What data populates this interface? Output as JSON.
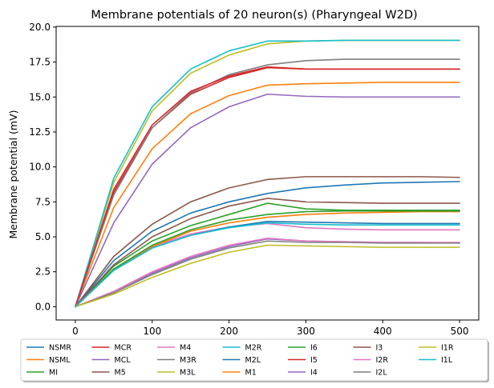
{
  "chart_data": {
    "type": "line",
    "title": "Membrane potentials of 20 neuron(s) (Pharyngeal W2D)",
    "xlabel": "",
    "ylabel": "Membrane potential (mV)",
    "xlim": [
      -25,
      525
    ],
    "ylim": [
      -0.95,
      20.05
    ],
    "xticks": [
      0,
      100,
      200,
      300,
      400,
      500
    ],
    "yticks": [
      0.0,
      2.5,
      5.0,
      7.5,
      10.0,
      12.5,
      15.0,
      17.5,
      20.0
    ],
    "xtick_labels": [
      "0",
      "100",
      "200",
      "300",
      "400",
      "500"
    ],
    "ytick_labels": [
      "0.0",
      "2.5",
      "5.0",
      "7.5",
      "10.0",
      "12.5",
      "15.0",
      "17.5",
      "20.0"
    ],
    "grid": false,
    "legend_placement": "bottom-center",
    "series": [
      {
        "name": "NSMR",
        "color": "#1f77b4",
        "x": [
          0,
          50,
          100,
          150,
          200,
          250,
          300,
          350,
          400,
          450,
          500
        ],
        "values": [
          0.0,
          3.3,
          5.4,
          6.7,
          7.5,
          8.1,
          8.5,
          8.7,
          8.85,
          8.9,
          8.95
        ]
      },
      {
        "name": "NSML",
        "color": "#ff7f0e",
        "x": [
          0,
          50,
          100,
          150,
          200,
          250,
          300,
          350,
          400,
          450,
          500
        ],
        "values": [
          0.0,
          7.1,
          11.3,
          13.8,
          15.1,
          15.85,
          15.95,
          16.0,
          16.05,
          16.05,
          16.05
        ]
      },
      {
        "name": "MI",
        "color": "#2ca02c",
        "x": [
          0,
          50,
          100,
          150,
          200,
          250,
          300,
          350,
          400,
          450,
          500
        ],
        "values": [
          0.0,
          2.9,
          4.7,
          5.8,
          6.6,
          7.4,
          7.0,
          6.9,
          6.9,
          6.9,
          6.9
        ]
      },
      {
        "name": "MCR",
        "color": "#d62728",
        "x": [
          0,
          50,
          100,
          150,
          200,
          250,
          300,
          350,
          400,
          450,
          500
        ],
        "values": [
          0.0,
          8.2,
          12.8,
          15.2,
          16.4,
          17.1,
          17.0,
          17.0,
          17.0,
          17.0,
          17.0
        ]
      },
      {
        "name": "MCL",
        "color": "#9467bd",
        "x": [
          0,
          50,
          100,
          150,
          200,
          250,
          300,
          350,
          400,
          450,
          500
        ],
        "values": [
          0.0,
          6.0,
          10.2,
          12.8,
          14.3,
          15.2,
          15.05,
          15.0,
          15.0,
          15.0,
          15.0
        ]
      },
      {
        "name": "M5",
        "color": "#8c564b",
        "x": [
          0,
          50,
          100,
          150,
          200,
          250,
          300,
          350,
          400,
          450,
          500
        ],
        "values": [
          0.0,
          3.6,
          5.9,
          7.5,
          8.5,
          9.1,
          9.3,
          9.3,
          9.3,
          9.3,
          9.25
        ]
      },
      {
        "name": "M4",
        "color": "#e377c2",
        "x": [
          0,
          50,
          100,
          150,
          200,
          250,
          300,
          350,
          400,
          450,
          500
        ],
        "values": [
          0.0,
          2.7,
          4.3,
          5.2,
          5.7,
          5.95,
          5.65,
          5.55,
          5.5,
          5.5,
          5.5
        ]
      },
      {
        "name": "M3R",
        "color": "#7f7f7f",
        "x": [
          0,
          50,
          100,
          150,
          200,
          250,
          300,
          350,
          400,
          450,
          500
        ],
        "values": [
          0.0,
          8.0,
          12.8,
          15.3,
          16.6,
          17.3,
          17.6,
          17.7,
          17.7,
          17.7,
          17.7
        ]
      },
      {
        "name": "M3L",
        "color": "#bcbd22",
        "x": [
          0,
          50,
          100,
          150,
          200,
          250,
          300,
          350,
          400,
          450,
          500
        ],
        "values": [
          0.0,
          8.9,
          14.0,
          16.7,
          18.0,
          18.8,
          19.0,
          19.05,
          19.05,
          19.05,
          19.05
        ]
      },
      {
        "name": "M2R",
        "color": "#17becf",
        "x": [
          0,
          50,
          100,
          150,
          200,
          250,
          300,
          350,
          400,
          450,
          500
        ],
        "values": [
          0.0,
          9.2,
          14.3,
          17.0,
          18.3,
          19.0,
          19.0,
          19.05,
          19.05,
          19.05,
          19.05
        ]
      },
      {
        "name": "M2L",
        "color": "#1f77b4",
        "x": [
          0,
          50,
          100,
          150,
          200,
          250,
          300,
          350,
          400,
          450,
          500
        ],
        "values": [
          0.0,
          2.6,
          4.2,
          5.1,
          5.7,
          6.1,
          6.05,
          6.0,
          5.95,
          5.95,
          5.95
        ]
      },
      {
        "name": "M1",
        "color": "#ff7f0e",
        "x": [
          0,
          50,
          100,
          150,
          200,
          250,
          300,
          350,
          400,
          450,
          500
        ],
        "values": [
          0.0,
          2.6,
          4.3,
          5.4,
          6.0,
          6.4,
          6.6,
          6.7,
          6.75,
          6.8,
          6.8
        ]
      },
      {
        "name": "I6",
        "color": "#2ca02c",
        "x": [
          0,
          50,
          100,
          150,
          200,
          250,
          300,
          350,
          400,
          450,
          500
        ],
        "values": [
          0.0,
          2.7,
          4.4,
          5.5,
          6.2,
          6.6,
          6.8,
          6.85,
          6.85,
          6.85,
          6.85
        ]
      },
      {
        "name": "I5",
        "color": "#d62728",
        "x": [
          0,
          50,
          100,
          150,
          200,
          250,
          300,
          350,
          400,
          450,
          500
        ],
        "values": [
          0.0,
          8.4,
          13.0,
          15.4,
          16.5,
          17.15,
          17.0,
          17.0,
          17.0,
          17.0,
          17.0
        ]
      },
      {
        "name": "I4",
        "color": "#9467bd",
        "x": [
          0,
          50,
          100,
          150,
          200,
          250,
          300,
          350,
          400,
          450,
          500
        ],
        "values": [
          0.0,
          1.0,
          2.4,
          3.5,
          4.3,
          4.85,
          4.7,
          4.65,
          4.6,
          4.6,
          4.55
        ]
      },
      {
        "name": "I3",
        "color": "#8c564b",
        "x": [
          0,
          50,
          100,
          150,
          200,
          250,
          300,
          350,
          400,
          450,
          500
        ],
        "values": [
          0.0,
          3.0,
          5.0,
          6.3,
          7.2,
          7.75,
          7.5,
          7.45,
          7.4,
          7.4,
          7.4
        ]
      },
      {
        "name": "I2R",
        "color": "#e377c2",
        "x": [
          0,
          50,
          100,
          150,
          200,
          250,
          300,
          350,
          400,
          450,
          500
        ],
        "values": [
          0.0,
          1.1,
          2.5,
          3.6,
          4.4,
          4.9,
          4.7,
          4.65,
          4.6,
          4.6,
          4.6
        ]
      },
      {
        "name": "I2L",
        "color": "#7f7f7f",
        "x": [
          0,
          50,
          100,
          150,
          200,
          250,
          300,
          350,
          400,
          450,
          500
        ],
        "values": [
          0.0,
          1.0,
          2.3,
          3.4,
          4.2,
          4.7,
          4.6,
          4.6,
          4.55,
          4.55,
          4.55
        ]
      },
      {
        "name": "I1R",
        "color": "#bcbd22",
        "x": [
          0,
          50,
          100,
          150,
          200,
          250,
          300,
          350,
          400,
          450,
          500
        ],
        "values": [
          0.0,
          0.9,
          2.1,
          3.1,
          3.9,
          4.4,
          4.35,
          4.3,
          4.25,
          4.25,
          4.25
        ]
      },
      {
        "name": "I1L",
        "color": "#17becf",
        "x": [
          0,
          50,
          100,
          150,
          200,
          250,
          300,
          350,
          400,
          450,
          500
        ],
        "values": [
          0.0,
          2.6,
          4.2,
          5.1,
          5.65,
          6.0,
          5.9,
          5.85,
          5.85,
          5.85,
          5.85
        ]
      }
    ]
  }
}
